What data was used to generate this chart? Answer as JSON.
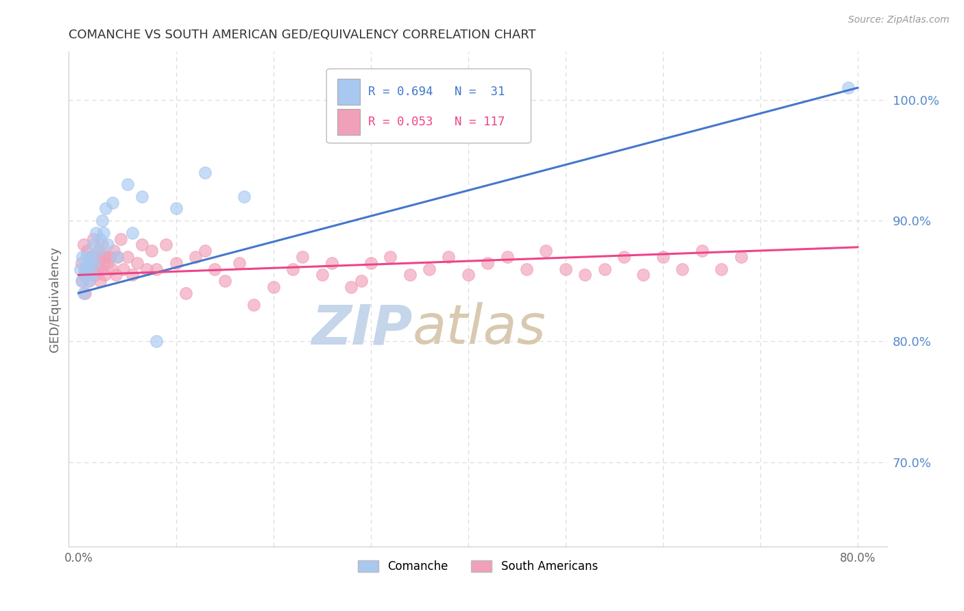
{
  "title": "COMANCHE VS SOUTH AMERICAN GED/EQUIVALENCY CORRELATION CHART",
  "source": "Source: ZipAtlas.com",
  "ylabel_left": "GED/Equivalency",
  "x_tick_labels": [
    "0.0%",
    "",
    "",
    "",
    "",
    "",
    "",
    "",
    "80.0%"
  ],
  "x_tick_vals": [
    0,
    10,
    20,
    30,
    40,
    50,
    60,
    70,
    80
  ],
  "y_tick_labels_right": [
    "70.0%",
    "80.0%",
    "90.0%",
    "100.0%"
  ],
  "y_tick_vals_right": [
    70,
    80,
    90,
    100
  ],
  "xlim": [
    -1,
    83
  ],
  "ylim": [
    63,
    104
  ],
  "comanche_color": "#A8C8F0",
  "south_american_color": "#F0A0B8",
  "line_comanche_color": "#4477CC",
  "line_sa_color": "#EE4488",
  "grid_color": "#DDDDDD",
  "title_color": "#333333",
  "right_axis_color": "#5588CC",
  "watermark_zip_color": "#C0CEEA",
  "watermark_atlas_color": "#D8C8B8",
  "comanche_x": [
    0.2,
    0.3,
    0.4,
    0.5,
    0.6,
    0.7,
    0.8,
    0.9,
    1.0,
    1.1,
    1.2,
    1.4,
    1.5,
    1.6,
    1.8,
    2.0,
    2.2,
    2.4,
    2.6,
    2.8,
    3.0,
    3.5,
    4.0,
    5.0,
    5.5,
    6.5,
    8.0,
    10.0,
    13.0,
    17.0,
    79.0
  ],
  "comanche_y": [
    86,
    85,
    87,
    84,
    86,
    85.5,
    87,
    86,
    85,
    86.5,
    87,
    85.5,
    88,
    86.5,
    89,
    87.5,
    88.5,
    90,
    89,
    91,
    88,
    91.5,
    87,
    93,
    89,
    92,
    80,
    91,
    94,
    92,
    101
  ],
  "sa_x": [
    0.3,
    0.4,
    0.5,
    0.6,
    0.7,
    0.8,
    0.9,
    1.0,
    1.1,
    1.2,
    1.3,
    1.4,
    1.5,
    1.6,
    1.7,
    1.8,
    1.9,
    2.0,
    2.1,
    2.2,
    2.3,
    2.4,
    2.5,
    2.6,
    2.7,
    2.8,
    3.0,
    3.2,
    3.4,
    3.6,
    3.8,
    4.0,
    4.3,
    4.6,
    5.0,
    5.5,
    6.0,
    6.5,
    7.0,
    7.5,
    8.0,
    9.0,
    10.0,
    11.0,
    12.0,
    13.0,
    14.0,
    15.0,
    16.5,
    18.0,
    20.0,
    22.0,
    23.0,
    25.0,
    26.0,
    28.0,
    29.0,
    30.0,
    32.0,
    34.0,
    36.0,
    38.0,
    40.0,
    42.0,
    44.0,
    46.0,
    48.0,
    50.0,
    52.0,
    54.0,
    56.0,
    58.0,
    60.0,
    62.0,
    64.0,
    66.0,
    68.0
  ],
  "sa_y": [
    86.5,
    85,
    88,
    85.5,
    84,
    86,
    87.5,
    86,
    85,
    87,
    86.5,
    87,
    88.5,
    86,
    85.5,
    86.5,
    87,
    86,
    87.5,
    85,
    86,
    88,
    87,
    86.5,
    85.5,
    87,
    86.5,
    87,
    86,
    87.5,
    85.5,
    87,
    88.5,
    86,
    87,
    85.5,
    86.5,
    88,
    86,
    87.5,
    86,
    88,
    86.5,
    84,
    87,
    87.5,
    86,
    85,
    86.5,
    83,
    84.5,
    86,
    87,
    85.5,
    86.5,
    84.5,
    85,
    86.5,
    87,
    85.5,
    86,
    87,
    85.5,
    86.5,
    87,
    86,
    87.5,
    86,
    85.5,
    86,
    87,
    85.5,
    87,
    86,
    87.5,
    86,
    87
  ]
}
